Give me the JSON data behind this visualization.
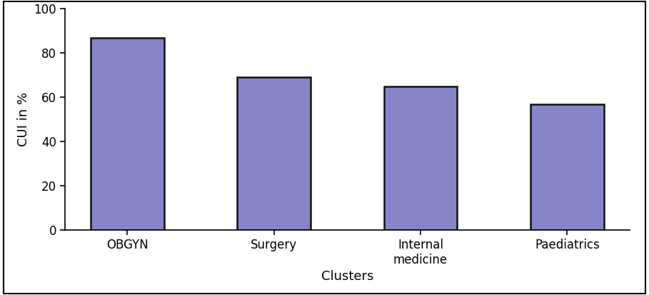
{
  "categories": [
    "OBGYN",
    "Surgery",
    "Internal\nmedicine",
    "Paediatrics"
  ],
  "values": [
    87,
    69,
    65,
    57
  ],
  "bar_color": "#8585c8",
  "bar_edgecolor": "#111111",
  "xlabel": "Clusters",
  "ylabel": "CUI in %",
  "ylim": [
    0,
    100
  ],
  "yticks": [
    0,
    20,
    40,
    60,
    80,
    100
  ],
  "background_color": "#ffffff",
  "bar_width": 0.5,
  "xlabel_fontsize": 13,
  "ylabel_fontsize": 13,
  "tick_fontsize": 12,
  "edge_linewidth": 1.8,
  "spine_linewidth": 1.2
}
